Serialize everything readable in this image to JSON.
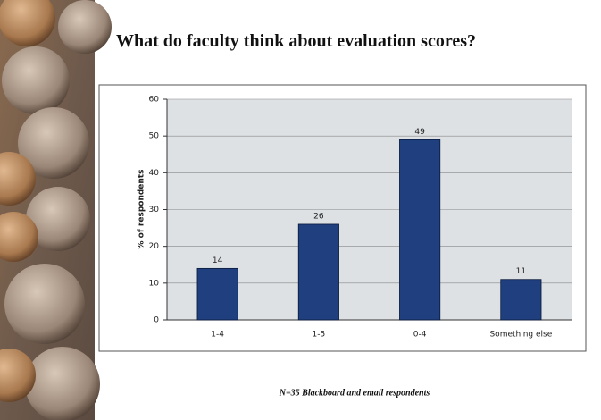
{
  "chart_data": {
    "type": "bar",
    "title": "What do faculty think about evaluation scores?",
    "y_label": "% of respondents",
    "categories": [
      "1-4",
      "1-5",
      "0-4",
      "Something else"
    ],
    "values": [
      14,
      26,
      49,
      11
    ],
    "color": "#1f3f7f",
    "ylim": [
      0,
      60
    ],
    "yticks": [
      0,
      10,
      20,
      30,
      40,
      50,
      60
    ],
    "grid": true,
    "annotation": "N=35 Blackboard and email respondents"
  }
}
